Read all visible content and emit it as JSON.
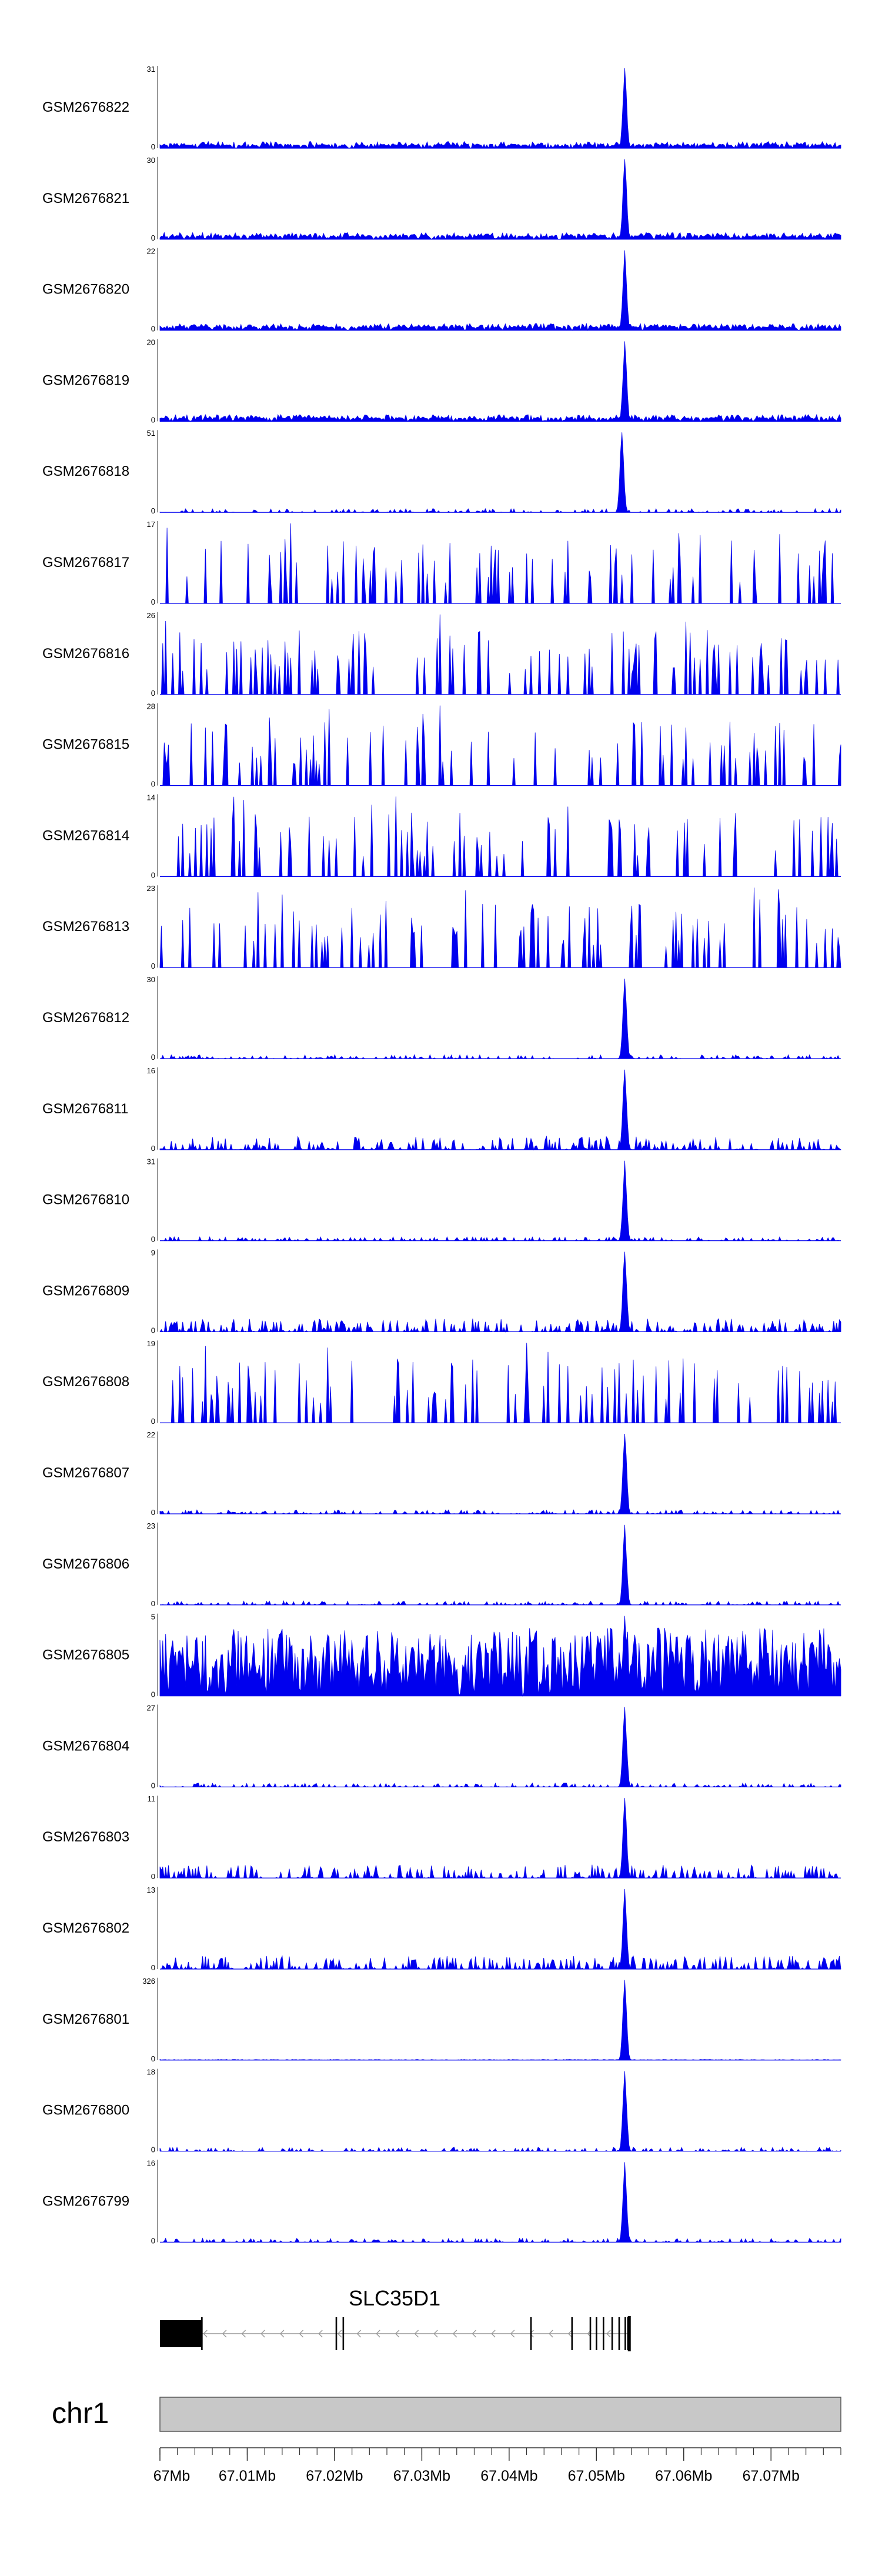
{
  "chart_data": {
    "type": "area",
    "title": "",
    "colors": {
      "track": "#0000ee",
      "axis": "#333333",
      "exon": "#000000",
      "intron": "#999999",
      "ideogram": "#c8c8c8"
    },
    "x_range": [
      67.0,
      67.078
    ],
    "tracks": [
      {
        "name": "GSM2676822",
        "ymax": "31",
        "ymin": "0",
        "max_value": 31,
        "peak_at": 67.0533,
        "style": "dense"
      },
      {
        "name": "GSM2676821",
        "ymax": "30",
        "ymin": "0",
        "max_value": 30,
        "peak_at": 67.0533,
        "style": "dense"
      },
      {
        "name": "GSM2676820",
        "ymax": "22",
        "ymin": "0",
        "max_value": 22,
        "peak_at": 67.0533,
        "style": "dense"
      },
      {
        "name": "GSM2676819",
        "ymax": "20",
        "ymin": "0",
        "max_value": 20,
        "peak_at": 67.0533,
        "style": "dense"
      },
      {
        "name": "GSM2676818",
        "ymax": "51",
        "ymin": "0",
        "max_value": 51,
        "peak_at": 67.053,
        "style": "sparse"
      },
      {
        "name": "GSM2676817",
        "ymax": "17",
        "ymin": "0",
        "max_value": 17,
        "peak_at": 67.015,
        "style": "spiky"
      },
      {
        "name": "GSM2676816",
        "ymax": "26",
        "ymin": "0",
        "max_value": 26,
        "peak_at": 67.032,
        "style": "spiky"
      },
      {
        "name": "GSM2676815",
        "ymax": "28",
        "ymin": "0",
        "max_value": 28,
        "peak_at": 67.032,
        "style": "spiky"
      },
      {
        "name": "GSM2676814",
        "ymax": "14",
        "ymin": "0",
        "max_value": 14,
        "peak_at": 67.027,
        "style": "spiky"
      },
      {
        "name": "GSM2676813",
        "ymax": "23",
        "ymin": "0",
        "max_value": 23,
        "peak_at": 67.068,
        "style": "spiky"
      },
      {
        "name": "GSM2676812",
        "ymax": "30",
        "ymin": "0",
        "max_value": 30,
        "peak_at": 67.0533,
        "style": "sparse"
      },
      {
        "name": "GSM2676811",
        "ymax": "16",
        "ymin": "0",
        "max_value": 16,
        "peak_at": 67.0533,
        "style": "medium"
      },
      {
        "name": "GSM2676810",
        "ymax": "31",
        "ymin": "0",
        "max_value": 31,
        "peak_at": 67.0533,
        "style": "sparse"
      },
      {
        "name": "GSM2676809",
        "ymax": "9",
        "ymin": "0",
        "max_value": 9,
        "peak_at": 67.0533,
        "style": "medium"
      },
      {
        "name": "GSM2676808",
        "ymax": "19",
        "ymin": "0",
        "max_value": 19,
        "peak_at": 67.042,
        "style": "spiky"
      },
      {
        "name": "GSM2676807",
        "ymax": "22",
        "ymin": "0",
        "max_value": 22,
        "peak_at": 67.0533,
        "style": "sparse"
      },
      {
        "name": "GSM2676806",
        "ymax": "23",
        "ymin": "0",
        "max_value": 23,
        "peak_at": 67.0533,
        "style": "sparse"
      },
      {
        "name": "GSM2676805",
        "ymax": "5",
        "ymin": "0",
        "max_value": 5,
        "peak_at": 67.0533,
        "style": "verydense"
      },
      {
        "name": "GSM2676804",
        "ymax": "27",
        "ymin": "0",
        "max_value": 27,
        "peak_at": 67.0533,
        "style": "sparse"
      },
      {
        "name": "GSM2676803",
        "ymax": "11",
        "ymin": "0",
        "max_value": 11,
        "peak_at": 67.0533,
        "style": "medium"
      },
      {
        "name": "GSM2676802",
        "ymax": "13",
        "ymin": "0",
        "max_value": 13,
        "peak_at": 67.0533,
        "style": "medium"
      },
      {
        "name": "GSM2676801",
        "ymax": "326",
        "ymin": "0",
        "max_value": 326,
        "peak_at": 67.0533,
        "style": "flat"
      },
      {
        "name": "GSM2676800",
        "ymax": "18",
        "ymin": "0",
        "max_value": 18,
        "peak_at": 67.0533,
        "style": "sparse"
      },
      {
        "name": "GSM2676799",
        "ymax": "16",
        "ymin": "0",
        "max_value": 16,
        "peak_at": 67.0533,
        "style": "sparse"
      }
    ],
    "gene": {
      "name": "SLC35D1",
      "strand": "-",
      "start": 67.0,
      "end": 67.0538,
      "exons": [
        67.0,
        67.0048,
        67.0202,
        67.021,
        67.0425,
        67.0472,
        67.0493,
        67.05,
        67.0508,
        67.0518,
        67.0526,
        67.0533,
        67.0536,
        67.0538
      ]
    },
    "chromosome": "chr1",
    "axis_ticks": [
      "67Mb",
      "67.01Mb",
      "67.02Mb",
      "67.03Mb",
      "67.04Mb",
      "67.05Mb",
      "67.06Mb",
      "67.07Mb"
    ],
    "axis_tick_values": [
      67.0,
      67.01,
      67.02,
      67.03,
      67.04,
      67.05,
      67.06,
      67.07
    ],
    "minor_tick_step": 0.002
  }
}
